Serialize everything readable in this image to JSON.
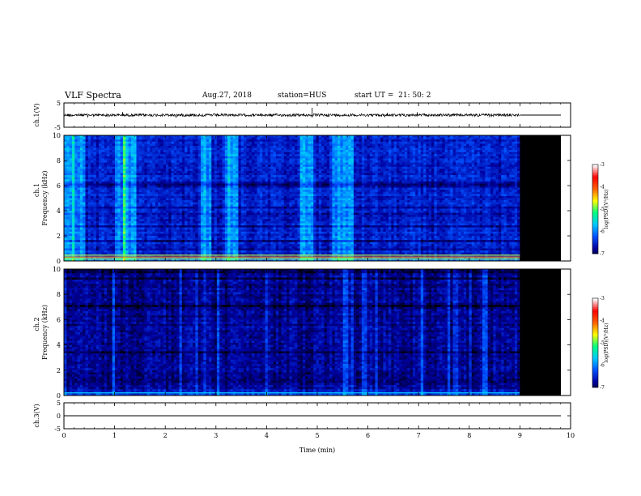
{
  "header": {
    "title": "VLF Spectra",
    "date": "Aug.27, 2018",
    "station": "station=HUS",
    "start": "start UT =  21: 50: 2"
  },
  "chart_data": {
    "type": "heatmap",
    "xlabel": "Time (min)",
    "xlim": [
      0,
      10
    ],
    "x_ticks": [
      "0",
      "1",
      "2",
      "3",
      "4",
      "5",
      "6",
      "7",
      "8",
      "9",
      "10"
    ],
    "data_end_min": 9,
    "panels": [
      {
        "id": "ch1-waveform",
        "type": "line",
        "ylabel": "ch.1(V)",
        "ylim": [
          -5,
          5
        ],
        "y_ticks": [
          "5",
          "-5"
        ],
        "level_before_end": 0,
        "level_after_end": 0
      },
      {
        "id": "ch1-spectrogram",
        "type": "heatmap",
        "channel_label": "ch.1",
        "ylabel": "Frequency (kHz)",
        "ylim": [
          0,
          10
        ],
        "y_ticks": [
          "0",
          "2",
          "4",
          "6",
          "8",
          "10"
        ],
        "colorbar_label": "log(PSD)(V²/Hz)",
        "colorbar_ticks": [
          "-3",
          "-4",
          "-5",
          "-6",
          "-7"
        ],
        "colorbar_range": [
          -7,
          -3
        ],
        "background_level": -6.1,
        "bright_bursts_min": [
          0.1,
          0.3,
          1.1,
          1.3,
          2.8,
          3.3,
          4.8,
          5.4,
          5.6
        ],
        "no_data_color": "#000000"
      },
      {
        "id": "ch2-spectrogram",
        "type": "heatmap",
        "channel_label": "ch.2",
        "ylabel": "Frequency (kHz)",
        "ylim": [
          0,
          10
        ],
        "y_ticks": [
          "0",
          "2",
          "4",
          "6",
          "8",
          "10"
        ],
        "colorbar_label": "log(PSD)(V²/Hz)",
        "colorbar_ticks": [
          "-3",
          "-4",
          "-5",
          "-6",
          "-7"
        ],
        "colorbar_range": [
          -7,
          -3
        ],
        "background_level": -6.6,
        "no_data_color": "#000000"
      },
      {
        "id": "ch3-waveform",
        "type": "line",
        "ylabel": "ch.3(V)",
        "ylim": [
          -5,
          5
        ],
        "y_ticks": [
          "5",
          "0",
          "-5"
        ],
        "level": 0
      }
    ],
    "colormap": [
      "#000000",
      "#0000a0",
      "#0050ff",
      "#00c8ff",
      "#00ff80",
      "#ffff00",
      "#ff6000",
      "#ff0000",
      "#ffffff"
    ]
  }
}
